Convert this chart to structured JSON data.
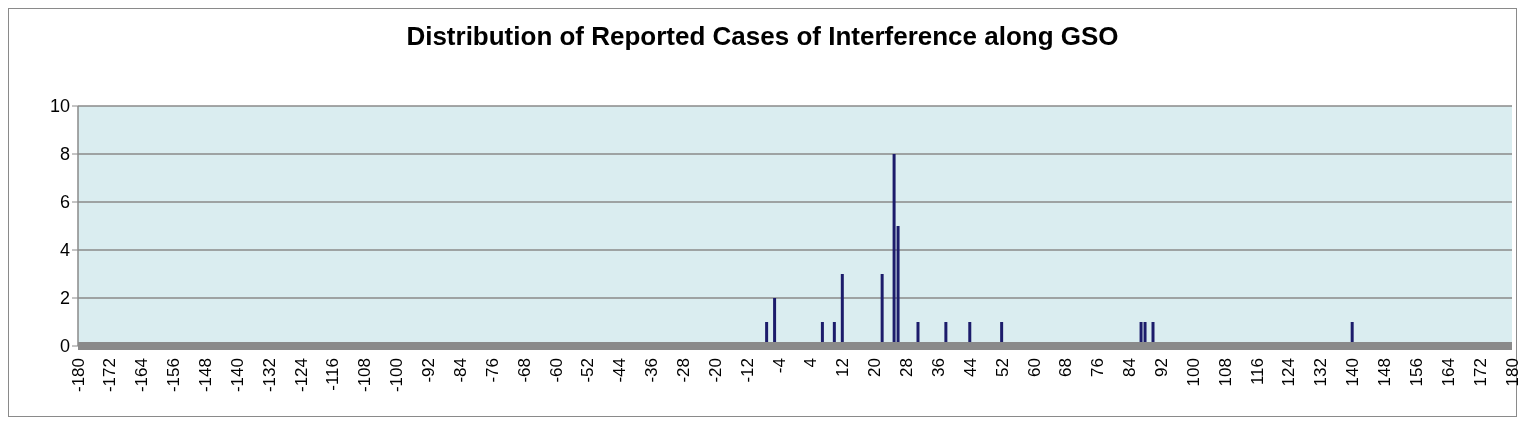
{
  "chart_data": {
    "type": "bar",
    "title": "Distribution of Reported Cases of Interference along GSO",
    "x": [
      -7,
      -5,
      7,
      10,
      12,
      22,
      25,
      26,
      31,
      38,
      44,
      52,
      87,
      88,
      90,
      140
    ],
    "values": [
      1,
      2,
      1,
      1,
      3,
      3,
      8,
      5,
      1,
      1,
      1,
      1,
      1,
      1,
      1,
      1
    ],
    "color": "#1c1c6b",
    "xlim": [
      -180,
      180
    ],
    "xticks": [
      -180,
      -172,
      -164,
      -156,
      -148,
      -140,
      -132,
      -124,
      -116,
      -108,
      -100,
      -92,
      -84,
      -76,
      -68,
      -60,
      -52,
      -44,
      -36,
      -28,
      -20,
      -12,
      -4,
      4,
      12,
      20,
      28,
      36,
      44,
      52,
      60,
      68,
      76,
      84,
      92,
      100,
      108,
      116,
      124,
      132,
      140,
      148,
      156,
      164,
      172,
      180
    ],
    "ylim": [
      0,
      10
    ],
    "yticks": [
      0,
      2,
      4,
      6,
      8,
      10
    ],
    "grid": "y",
    "legend": false
  }
}
